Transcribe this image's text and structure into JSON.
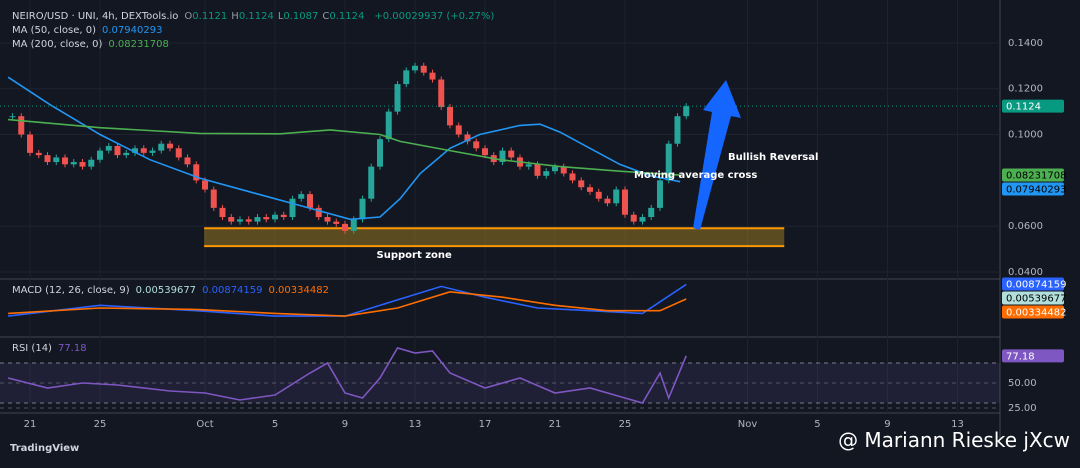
{
  "chart_data": [
    {
      "type": "candlestick",
      "title": "NEIRO/USD · UNI, 4h, DEXTools.io",
      "ohlc": [
        {
          "key": "O",
          "value": 0.1121
        },
        {
          "key": "H",
          "value": 0.1124
        },
        {
          "key": "L",
          "value": 0.1087
        },
        {
          "key": "C",
          "value": 0.1124
        }
      ],
      "change": "+0.00029937 (+0.27%)",
      "xlim": [
        -1.43,
        112.86
      ],
      "ylim": [
        0.0374,
        0.1587
      ],
      "yticks": [
        {
          "value": 0.14,
          "label": "0.1400"
        },
        {
          "value": 0.12,
          "label": "0.1200"
        },
        {
          "value": 0.1,
          "label": "0.1000"
        },
        {
          "value": 0.06,
          "label": "0.0600"
        },
        {
          "value": 0.04,
          "label": "0.0400"
        }
      ],
      "up_color": "#26a69a",
      "down_color": "#ef5350",
      "series": [
        {
          "name": "NEIRO/USD",
          "values": [
            0.108,
            0.1,
            0.092,
            0.091,
            0.088,
            0.09,
            0.087,
            0.088,
            0.086,
            0.089,
            0.093,
            0.095,
            0.091,
            0.092,
            0.094,
            0.092,
            0.093,
            0.096,
            0.094,
            0.09,
            0.087,
            0.08,
            0.076,
            0.068,
            0.064,
            0.062,
            0.063,
            0.062,
            0.064,
            0.063,
            0.065,
            0.064,
            0.072,
            0.074,
            0.068,
            0.064,
            0.062,
            0.061,
            0.058,
            0.063,
            0.072,
            0.086,
            0.098,
            0.11,
            0.122,
            0.128,
            0.13,
            0.127,
            0.124,
            0.112,
            0.104,
            0.1,
            0.097,
            0.094,
            0.091,
            0.088,
            0.093,
            0.09,
            0.086,
            0.087,
            0.082,
            0.084,
            0.086,
            0.083,
            0.08,
            0.077,
            0.075,
            0.072,
            0.07,
            0.076,
            0.065,
            0.062,
            0.064,
            0.068,
            0.08,
            0.096,
            0.108,
            0.1124
          ]
        }
      ],
      "last_price": 0.1124,
      "overlays": [
        {
          "name": "MA (50, close, 0)",
          "color": "#2196f3",
          "x": [
            -0.5,
            4.3,
            10,
            15.7,
            21.4,
            27.1,
            32.9,
            38.6,
            42,
            44.3,
            46.6,
            50,
            53.4,
            58,
            60.3,
            62.6,
            66,
            69.4,
            72.9,
            76.3
          ],
          "values": [
            0.125,
            0.113,
            0.1,
            0.089,
            0.081,
            0.075,
            0.069,
            0.063,
            0.064,
            0.072,
            0.083,
            0.094,
            0.1,
            0.104,
            0.1045,
            0.101,
            0.094,
            0.087,
            0.082,
            0.07940293
          ]
        },
        {
          "name": "MA (200, close, 0)",
          "color": "#4caf50",
          "x": [
            -0.5,
            10,
            21.4,
            30.6,
            36.3,
            42,
            44.3,
            50,
            55.7,
            62.6,
            69.4,
            76.3
          ],
          "values": [
            0.1065,
            0.103,
            0.1005,
            0.1003,
            0.102,
            0.1,
            0.097,
            0.093,
            0.089,
            0.086,
            0.084,
            0.08231708
          ]
        }
      ],
      "zone": {
        "label": "Support zone",
        "color": "#ff9800",
        "xlim": [
          21.9,
          88.2
        ],
        "ylim": [
          0.0513,
          0.0591
        ]
      },
      "annotations": [
        {
          "text": "Bullish Reversal"
        },
        {
          "text": "Moving average cross"
        }
      ]
    },
    {
      "type": "line",
      "title": "MACD (12, 26, close, 9)",
      "xlim": [
        -1.43,
        112.86
      ],
      "ylim": [
        -0.01,
        0.01
      ],
      "histogram": 0.00539677,
      "histogram_color": "#b2dfdb",
      "series": [
        {
          "name": "MACD",
          "color": "#2962ff",
          "x": [
            -0.5,
            10,
            21,
            30,
            38,
            44,
            49,
            54,
            60,
            66,
            72,
            77
          ],
          "values": [
            -0.003,
            0.001,
            -0.001,
            -0.003,
            -0.003,
            0.003,
            0.008,
            0.004,
            0.0,
            -0.001,
            -0.002,
            0.00874159
          ]
        },
        {
          "name": "Signal",
          "color": "#ff6d00",
          "x": [
            -0.5,
            10,
            21,
            30,
            38,
            44,
            50,
            56,
            62,
            68,
            74,
            77
          ],
          "values": [
            -0.002,
            0.0,
            -0.0005,
            -0.002,
            -0.003,
            0.0,
            0.006,
            0.004,
            0.001,
            -0.001,
            -0.001,
            0.00334482
          ]
        }
      ]
    },
    {
      "type": "line",
      "title": "RSI (14)",
      "xlim": [
        -1.43,
        112.86
      ],
      "ylim": [
        21,
        93
      ],
      "yticks": [
        {
          "value": 50,
          "label": "50.00"
        },
        {
          "value": 25,
          "label": "25.00"
        }
      ],
      "bands": [
        70,
        30
      ],
      "xticks": [
        {
          "value": 2,
          "label": "21"
        },
        {
          "value": 10,
          "label": "25"
        },
        {
          "value": 22,
          "label": "Oct"
        },
        {
          "value": 30,
          "label": "5"
        },
        {
          "value": 38,
          "label": "9"
        },
        {
          "value": 46,
          "label": "13"
        },
        {
          "value": 54,
          "label": "17"
        },
        {
          "value": 62,
          "label": "21"
        },
        {
          "value": 70,
          "label": "25"
        },
        {
          "value": 84,
          "label": "Nov"
        },
        {
          "value": 92,
          "label": "5"
        },
        {
          "value": 100,
          "label": "9"
        },
        {
          "value": 108,
          "label": "13"
        }
      ],
      "series": [
        {
          "name": "RSI",
          "color": "#7e57c2",
          "x": [
            -0.5,
            4,
            8,
            12,
            18,
            22,
            26,
            30,
            34,
            36,
            38,
            40,
            42,
            44,
            46,
            48,
            50,
            54,
            58,
            62,
            66,
            70,
            72,
            74,
            75,
            77
          ],
          "values": [
            55,
            45,
            50,
            48,
            42,
            40,
            33,
            38,
            60,
            70,
            40,
            35,
            55,
            85,
            80,
            82,
            60,
            45,
            55,
            40,
            45,
            35,
            30,
            60,
            35,
            77.18
          ]
        }
      ]
    }
  ],
  "footer": {
    "brand": "TradingView",
    "credit": "@ Mariann Rieske jXcw"
  }
}
